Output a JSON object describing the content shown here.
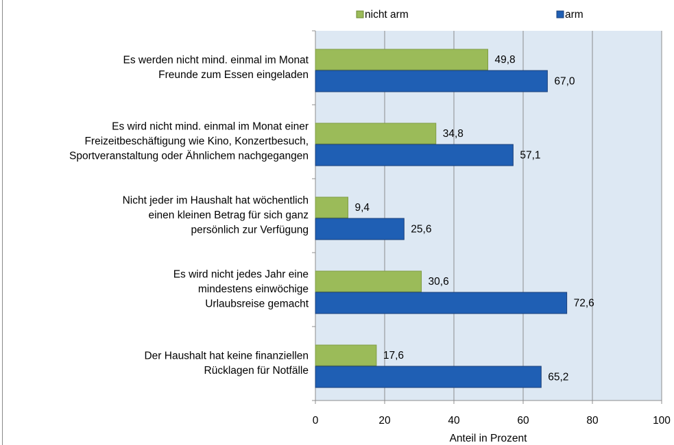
{
  "chart_data": {
    "type": "hbar",
    "categories": [
      [
        "Es werden nicht mind. einmal im Monat",
        "Freunde zum Essen eingeladen"
      ],
      [
        "Es wird nicht mind. einmal im Monat  einer",
        "Freizeitbeschäftigung wie Kino, Konzertbesuch,",
        "Sportveranstaltung oder Ähnlichem nachgegangen"
      ],
      [
        "Nicht jeder im Haushalt hat wöchentlich",
        "einen kleinen Betrag für sich ganz",
        "persönlich zur Verfügung"
      ],
      [
        "Es wird nicht jedes Jahr eine",
        "mindestens einwöchige",
        "Urlaubsreise gemacht"
      ],
      [
        "Der Haushalt hat keine finanziellen",
        "Rücklagen für Notfälle"
      ]
    ],
    "series": [
      {
        "name": "nicht arm",
        "color": "#9bbb59",
        "values": [
          49.8,
          34.8,
          9.4,
          30.6,
          17.6
        ],
        "value_labels": [
          "49,8",
          "34,8",
          "9,4",
          "30,6",
          "17,6"
        ]
      },
      {
        "name": "arm",
        "color": "#1f5fb4",
        "values": [
          67.0,
          57.1,
          25.6,
          72.6,
          65.2
        ],
        "value_labels": [
          "67,0",
          "57,1",
          "25,6",
          "72,6",
          "65,2"
        ]
      }
    ],
    "xlabel": "Anteil in Prozent",
    "xlim": [
      0,
      100
    ],
    "xticks": [
      0,
      20,
      40,
      60,
      80,
      100
    ],
    "grid": true,
    "legend": "top"
  }
}
